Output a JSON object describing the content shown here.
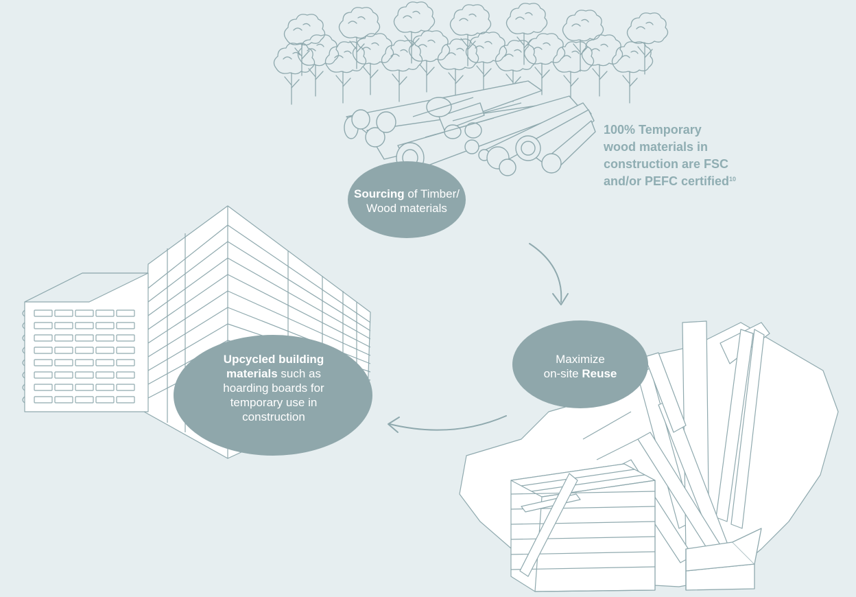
{
  "colors": {
    "background": "#e6eef0",
    "ellipse_fill": "#8fa7ab",
    "line_art": "#8fa9ae",
    "callout_text": "#8fadb2",
    "ellipse_text": "#ffffff"
  },
  "icons": [
    "forest-illustration",
    "log-pile-illustration",
    "building-illustration",
    "wood-debris-illustration",
    "pallet-stack-illustration",
    "cardboard-box-illustration",
    "curved-arrow-icon"
  ],
  "sourcing": {
    "bold": "Sourcing",
    "line1_rest": " of Timber/",
    "line2": "Wood materials"
  },
  "reuse": {
    "line1": "Maximize",
    "line2_prefix": "on-site ",
    "bold": "Reuse"
  },
  "upcycled": {
    "bold_line1": "Upcycled building",
    "bold_line2": "materials",
    "line2_rest": " such as",
    "line3": "hoarding boards for",
    "line4": "temporary use in",
    "line5": "construction"
  },
  "callout": {
    "line1": "100% Temporary",
    "line2": "wood materials in",
    "line3": "construction are FSC",
    "line4": "and/or PEFC certified",
    "footnote": "10"
  }
}
